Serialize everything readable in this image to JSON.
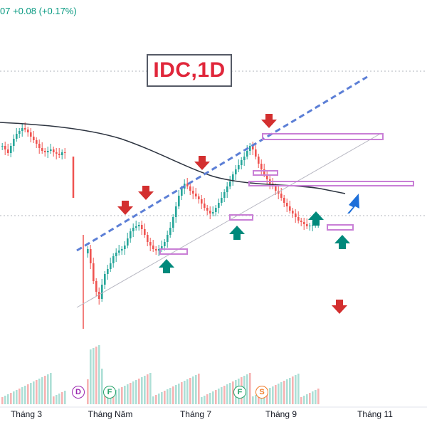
{
  "header": {
    "price_change": "07  +0.08 (+0.17%)"
  },
  "title": "IDC,1D",
  "event_badges": [
    "D",
    "F",
    "F",
    "S"
  ],
  "colors": {
    "up": "#26a69a",
    "down": "#ef5350",
    "arrow_sell": "#d32f2f",
    "arrow_buy": "#00897b",
    "arrow_forecast": "#1e6fd9",
    "zone": "#c97fd6",
    "trendline": "#5c7fd6",
    "moving_average": "#2d3440"
  },
  "chart_data": {
    "type": "candlestick",
    "title": "IDC,1D",
    "x_tick_labels": [
      "Tháng 3",
      "Tháng Năm",
      "Tháng 7",
      "Tháng 9",
      "Tháng 11"
    ],
    "series": [],
    "annotations": {
      "sell_arrows": 5,
      "buy_arrows": 4,
      "forecast_arrow": "up"
    },
    "grid": false,
    "legend": "none"
  }
}
